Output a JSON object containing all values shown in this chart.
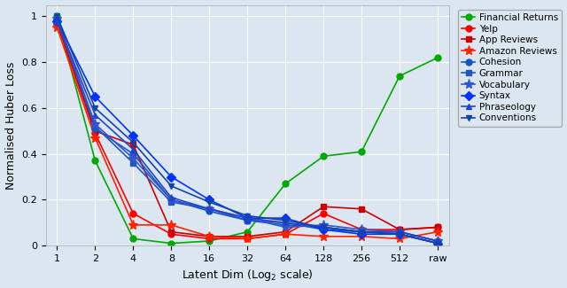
{
  "title": "",
  "xlabel": "Latent Dim (Log$_2$ scale)",
  "ylabel": "Normalised Huber Loss",
  "background_color": "#dce6f0",
  "x_labels": [
    "1",
    "2",
    "4",
    "8",
    "16",
    "32",
    "64",
    "128",
    "256",
    "512",
    "raw"
  ],
  "series": [
    {
      "name": "Financial Returns",
      "color": "#00aa00",
      "marker": "o",
      "values": [
        1.0,
        0.37,
        0.03,
        0.01,
        0.02,
        0.06,
        0.27,
        0.39,
        0.41,
        0.74,
        0.82
      ]
    },
    {
      "name": "Yelp",
      "color": "#ff0000",
      "marker": "o",
      "values": [
        0.97,
        0.49,
        0.14,
        0.05,
        0.03,
        0.03,
        0.05,
        0.14,
        0.07,
        0.07,
        0.08
      ]
    },
    {
      "name": "App Reviews",
      "color": "#cc0000",
      "marker": "s",
      "values": [
        0.97,
        0.5,
        0.44,
        0.06,
        0.04,
        0.04,
        0.06,
        0.17,
        0.16,
        0.07,
        0.08
      ]
    },
    {
      "name": "Amazon Reviews",
      "color": "#ff2200",
      "marker": "*",
      "values": [
        0.95,
        0.47,
        0.09,
        0.09,
        0.04,
        0.03,
        0.05,
        0.04,
        0.04,
        0.03,
        0.06
      ]
    },
    {
      "name": "Cohesion",
      "color": "#1155cc",
      "marker": "o",
      "values": [
        0.99,
        0.51,
        0.4,
        0.2,
        0.15,
        0.11,
        0.09,
        0.08,
        0.06,
        0.06,
        0.02
      ]
    },
    {
      "name": "Grammar",
      "color": "#2255bb",
      "marker": "s",
      "values": [
        0.98,
        0.52,
        0.36,
        0.19,
        0.16,
        0.11,
        0.1,
        0.07,
        0.06,
        0.05,
        0.01
      ]
    },
    {
      "name": "Vocabulary",
      "color": "#3355cc",
      "marker": "*",
      "values": [
        0.99,
        0.53,
        0.38,
        0.2,
        0.16,
        0.12,
        0.08,
        0.09,
        0.07,
        0.06,
        0.02
      ]
    },
    {
      "name": "Syntax",
      "color": "#0033ff",
      "marker": "D",
      "values": [
        0.98,
        0.65,
        0.48,
        0.3,
        0.2,
        0.12,
        0.12,
        0.07,
        0.05,
        0.05,
        0.01
      ]
    },
    {
      "name": "Phraseology",
      "color": "#2244cc",
      "marker": "^",
      "values": [
        0.98,
        0.57,
        0.42,
        0.21,
        0.16,
        0.12,
        0.1,
        0.08,
        0.06,
        0.06,
        0.02
      ]
    },
    {
      "name": "Conventions",
      "color": "#1144aa",
      "marker": "v",
      "values": [
        1.0,
        0.6,
        0.45,
        0.26,
        0.19,
        0.13,
        0.11,
        0.08,
        0.06,
        0.05,
        0.01
      ]
    }
  ],
  "figsize": [
    6.4,
    3.25
  ],
  "dpi": 100,
  "ylim": [
    0,
    1.05
  ],
  "yticks": [
    0.0,
    0.2,
    0.4,
    0.6,
    0.8,
    1.0
  ],
  "ytick_labels": [
    "0",
    "0.2",
    "0.4",
    "0.6",
    "0.8",
    "1"
  ]
}
